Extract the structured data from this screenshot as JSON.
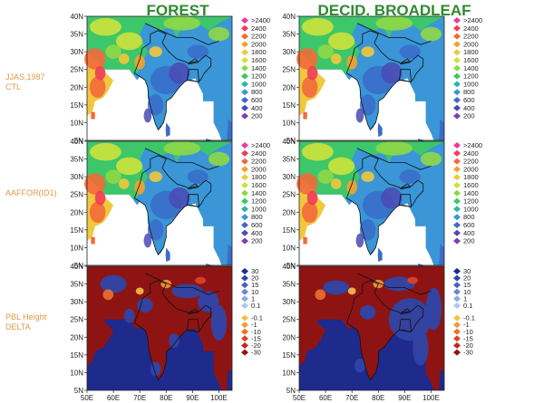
{
  "columns": [
    "FOREST",
    "DECID. BROADLEAF"
  ],
  "rows": [
    {
      "label_lines": [
        "JJAS,1987",
        "CTL"
      ]
    },
    {
      "label_lines": [
        "AAFFOR(ID1)"
      ]
    },
    {
      "label_lines": [
        "PBL  Height",
        "DELTA"
      ]
    }
  ],
  "lat_ticks": [
    "40N",
    "35N",
    "30N",
    "25N",
    "20N",
    "15N",
    "10N",
    "5N"
  ],
  "lon_ticks": [
    "50E",
    "60E",
    "70E",
    "80E",
    "90E",
    "100E"
  ],
  "legend_abs": [
    {
      "label": ">2400",
      "color": "#e83aa0"
    },
    {
      "label": "2400",
      "color": "#ee3c5a"
    },
    {
      "label": "2200",
      "color": "#f26a3a"
    },
    {
      "label": "2000",
      "color": "#f5a030"
    },
    {
      "label": "1800",
      "color": "#f0c83c"
    },
    {
      "label": "1600",
      "color": "#cce23c"
    },
    {
      "label": "1400",
      "color": "#8ed846"
    },
    {
      "label": "1200",
      "color": "#3ec864"
    },
    {
      "label": "1000",
      "color": "#2ab8a8"
    },
    {
      "label": "800",
      "color": "#3a96d6"
    },
    {
      "label": "600",
      "color": "#3a6cc8"
    },
    {
      "label": "400",
      "color": "#4a4ab4"
    },
    {
      "label": "200",
      "color": "#7a40b0"
    }
  ],
  "legend_delta": [
    {
      "label": "30",
      "color": "#1e2a8c"
    },
    {
      "label": "20",
      "color": "#2f45a8"
    },
    {
      "label": "15",
      "color": "#4762c0"
    },
    {
      "label": "10",
      "color": "#6a86d2"
    },
    {
      "label": "1",
      "color": "#8fa8e0"
    },
    {
      "label": "0.1",
      "color": "#b4c6ee"
    },
    {
      "label": "-0.1",
      "color": "#f5c04a"
    },
    {
      "label": "-1",
      "color": "#f29a38"
    },
    {
      "label": "-10",
      "color": "#ec7030"
    },
    {
      "label": "-15",
      "color": "#de4428"
    },
    {
      "label": "-20",
      "color": "#c42420"
    },
    {
      "label": "-30",
      "color": "#8e1414"
    }
  ]
}
